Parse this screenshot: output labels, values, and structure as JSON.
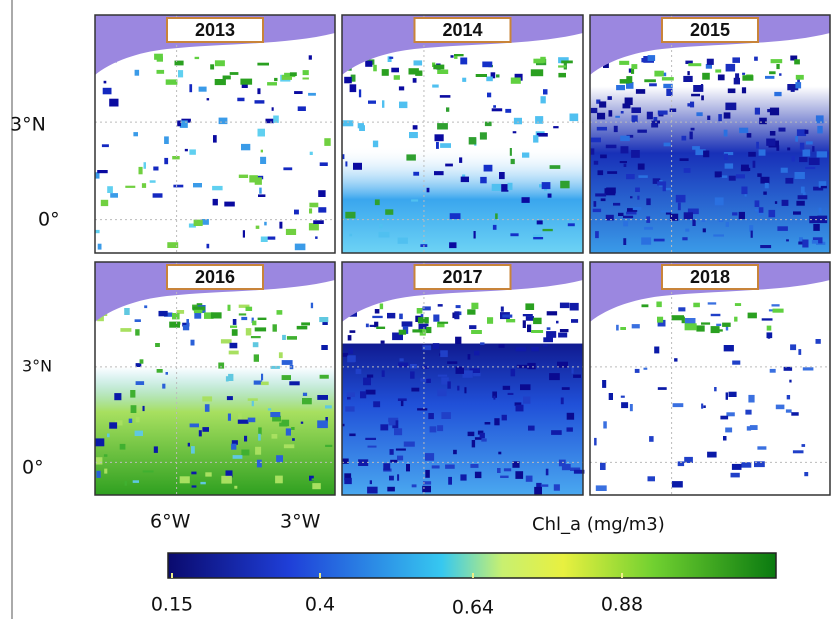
{
  "panels": [
    {
      "year": "2013"
    },
    {
      "year": "2014"
    },
    {
      "year": "2015"
    },
    {
      "year": "2016"
    },
    {
      "year": "2017"
    },
    {
      "year": "2018"
    }
  ],
  "axes": {
    "lat_labels_top": [
      "3°N",
      "0°"
    ],
    "lat_labels_bottom": [
      "3°N",
      "0°"
    ],
    "lon_labels": [
      "6°W",
      "3°W"
    ]
  },
  "colorbar": {
    "title": "Chl_a (mg/m3)",
    "ticks": [
      "0.15",
      "0.4",
      "0.64",
      "0.88"
    ]
  }
}
